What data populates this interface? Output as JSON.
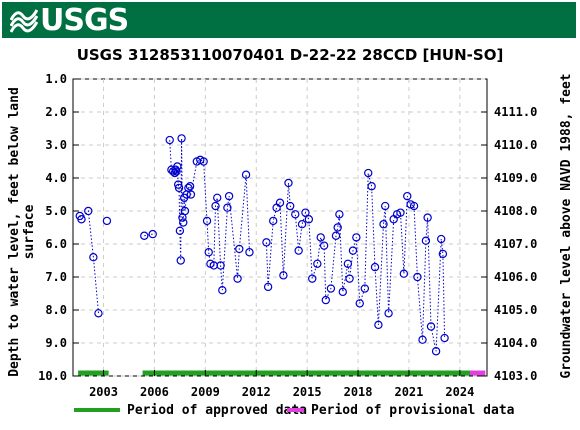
{
  "header": {
    "logo_text": "USGS"
  },
  "chart_data": {
    "type": "scatter",
    "title": "USGS 312853110070401 D-22-22 28CCD [HUN-SO]",
    "ylabel_left": [
      "Depth to water level, feet below land",
      "surface"
    ],
    "ylabel_right": "Groundwater level above NAVD 1988, feet",
    "ylim_left": [
      10.0,
      1.0
    ],
    "ylim_right": [
      4103.0,
      4111.0
    ],
    "xlim": [
      2001.2,
      2025.6
    ],
    "y_left_ticks": [
      "1.0",
      "2.0",
      "3.0",
      "4.0",
      "5.0",
      "6.0",
      "7.0",
      "8.0",
      "9.0",
      "10.0"
    ],
    "y_right_ticks": [
      "4103.0",
      "4104.0",
      "4105.0",
      "4106.0",
      "4107.0",
      "4108.0",
      "4109.0",
      "4110.0",
      "4111.0"
    ],
    "x_ticks": [
      "2003",
      "2006",
      "2009",
      "2012",
      "2015",
      "2018",
      "2021",
      "2024"
    ],
    "grid": true,
    "marker_color": "#0000cc",
    "legend": [
      {
        "label": "Period of approved data",
        "color": "#22a022"
      },
      {
        "label": "Period of provisional data",
        "color": "#e040e0"
      }
    ],
    "periods": {
      "approved": [
        [
          2001.5,
          2003.3
        ],
        [
          2005.3,
          2024.6
        ]
      ],
      "provisional": [
        [
          2024.6,
          2025.5
        ]
      ]
    },
    "series": [
      {
        "segments": [
          [
            [
              2001.6,
              5.15
            ],
            [
              2001.7,
              5.25
            ],
            [
              2002.1,
              5.0
            ],
            [
              2002.4,
              6.4
            ],
            [
              2002.7,
              8.1
            ]
          ],
          [
            [
              2003.2,
              5.3
            ]
          ],
          [
            [
              2005.4,
              5.75
            ],
            [
              2005.9,
              5.7
            ]
          ],
          [
            [
              2006.9,
              2.85
            ],
            [
              2007.0,
              3.75
            ],
            [
              2007.1,
              3.8
            ],
            [
              2007.2,
              3.85
            ],
            [
              2007.25,
              3.75
            ],
            [
              2007.3,
              3.8
            ],
            [
              2007.35,
              3.65
            ],
            [
              2007.4,
              4.2
            ],
            [
              2007.45,
              4.3
            ],
            [
              2007.5,
              5.6
            ],
            [
              2007.55,
              6.5
            ],
            [
              2007.6,
              2.8
            ],
            [
              2007.65,
              5.2
            ],
            [
              2007.7,
              5.35
            ],
            [
              2007.75,
              4.6
            ],
            [
              2007.8,
              5.0
            ],
            [
              2007.9,
              4.5
            ],
            [
              2008.0,
              4.3
            ],
            [
              2008.1,
              4.25
            ],
            [
              2008.15,
              4.5
            ],
            [
              2008.5,
              3.5
            ],
            [
              2008.7,
              3.45
            ],
            [
              2008.9,
              3.5
            ],
            [
              2009.1,
              5.3
            ],
            [
              2009.2,
              6.25
            ],
            [
              2009.3,
              6.6
            ],
            [
              2009.5,
              6.65
            ],
            [
              2009.6,
              4.85
            ],
            [
              2009.7,
              4.6
            ],
            [
              2009.9,
              6.65
            ],
            [
              2010.0,
              7.4
            ],
            [
              2010.3,
              4.9
            ],
            [
              2010.4,
              4.55
            ],
            [
              2010.9,
              7.05
            ],
            [
              2011.0,
              6.15
            ],
            [
              2011.4,
              3.9
            ],
            [
              2011.6,
              6.25
            ]
          ],
          [
            [
              2012.6,
              5.95
            ],
            [
              2012.7,
              7.3
            ],
            [
              2013.0,
              5.3
            ],
            [
              2013.2,
              4.9
            ],
            [
              2013.4,
              4.75
            ],
            [
              2013.6,
              6.95
            ],
            [
              2013.9,
              4.15
            ],
            [
              2014.0,
              4.85
            ],
            [
              2014.3,
              5.1
            ],
            [
              2014.5,
              6.2
            ],
            [
              2014.7,
              5.4
            ],
            [
              2014.9,
              5.05
            ],
            [
              2015.1,
              5.25
            ],
            [
              2015.3,
              7.05
            ],
            [
              2015.6,
              6.6
            ],
            [
              2015.8,
              5.8
            ],
            [
              2016.0,
              6.05
            ],
            [
              2016.1,
              7.7
            ],
            [
              2016.4,
              7.35
            ],
            [
              2016.7,
              5.75
            ],
            [
              2016.8,
              5.5
            ],
            [
              2016.9,
              5.1
            ],
            [
              2017.1,
              7.45
            ],
            [
              2017.4,
              6.6
            ],
            [
              2017.5,
              7.05
            ],
            [
              2017.7,
              6.2
            ],
            [
              2017.9,
              5.8
            ],
            [
              2018.1,
              7.8
            ],
            [
              2018.4,
              7.35
            ],
            [
              2018.6,
              3.85
            ],
            [
              2018.8,
              4.25
            ],
            [
              2019.0,
              6.7
            ],
            [
              2019.2,
              8.45
            ],
            [
              2019.5,
              5.4
            ],
            [
              2019.6,
              4.85
            ],
            [
              2019.8,
              8.1
            ],
            [
              2020.1,
              5.25
            ],
            [
              2020.3,
              5.1
            ],
            [
              2020.5,
              5.05
            ],
            [
              2020.7,
              6.9
            ],
            [
              2020.9,
              4.55
            ],
            [
              2021.1,
              4.8
            ],
            [
              2021.3,
              4.85
            ],
            [
              2021.5,
              7.0
            ],
            [
              2021.8,
              8.9
            ],
            [
              2022.0,
              5.9
            ],
            [
              2022.1,
              5.2
            ],
            [
              2022.3,
              8.5
            ],
            [
              2022.6,
              9.25
            ],
            [
              2022.9,
              5.85
            ],
            [
              2023.0,
              6.3
            ],
            [
              2023.1,
              8.85
            ]
          ]
        ]
      }
    ]
  }
}
